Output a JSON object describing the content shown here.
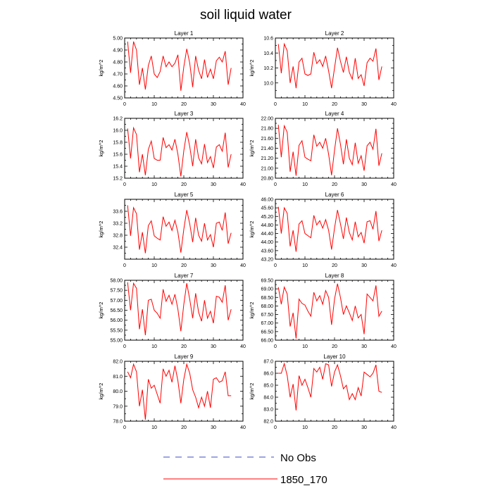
{
  "figure": {
    "title": "soil liquid water"
  },
  "legend": {
    "entries": [
      {
        "label": "No Obs",
        "color": "#3b4bc8",
        "style": "dashed"
      },
      {
        "label": "1850_170",
        "color": "#ff0000",
        "style": "solid"
      }
    ]
  },
  "chart_data": [
    {
      "type": "line",
      "title": "Layer 1",
      "xlabel": "",
      "ylabel": "kg/m^2",
      "xlim": [
        0,
        40
      ],
      "ylim": [
        4.5,
        5.0
      ],
      "xticks": [
        0,
        10,
        20,
        30,
        40
      ],
      "yticks": [
        4.5,
        4.6,
        4.7,
        4.8,
        4.9,
        5.0
      ],
      "ytick_decimals": 2,
      "series": [
        {
          "name": "1850_170",
          "color": "#ff0000",
          "x": [
            1,
            2,
            3,
            4,
            5,
            6,
            7,
            8,
            9,
            10,
            11,
            12,
            13,
            14,
            15,
            16,
            17,
            18,
            19,
            20,
            21,
            22,
            23,
            24,
            25,
            26,
            27,
            28,
            29,
            30,
            31,
            32,
            33,
            34,
            35,
            36
          ],
          "values": [
            4.97,
            4.71,
            4.97,
            4.9,
            4.61,
            4.75,
            4.57,
            4.77,
            4.85,
            4.7,
            4.67,
            4.72,
            4.85,
            4.76,
            4.8,
            4.76,
            4.79,
            4.86,
            4.56,
            4.76,
            4.91,
            4.79,
            4.59,
            4.85,
            4.73,
            4.66,
            4.82,
            4.67,
            4.74,
            4.66,
            4.81,
            4.84,
            4.8,
            4.89,
            4.61,
            4.75
          ]
        }
      ]
    },
    {
      "type": "line",
      "title": "Layer 2",
      "xlabel": "",
      "ylabel": "kg/m^2",
      "xlim": [
        0,
        40
      ],
      "ylim": [
        9.8,
        10.6
      ],
      "xticks": [
        0,
        10,
        20,
        30,
        40
      ],
      "yticks": [
        10.0,
        10.2,
        10.4,
        10.6
      ],
      "ytick_decimals": 1,
      "series": [
        {
          "name": "1850_170",
          "color": "#ff0000",
          "x": [
            1,
            2,
            3,
            4,
            5,
            6,
            7,
            8,
            9,
            10,
            11,
            12,
            13,
            14,
            15,
            16,
            17,
            18,
            19,
            20,
            21,
            22,
            23,
            24,
            25,
            26,
            27,
            28,
            29,
            30,
            31,
            32,
            33,
            34,
            35,
            36
          ],
          "values": [
            10.52,
            10.13,
            10.52,
            10.43,
            10.0,
            10.22,
            9.93,
            10.28,
            10.33,
            10.12,
            10.1,
            10.12,
            10.41,
            10.26,
            10.31,
            10.22,
            10.36,
            10.16,
            9.93,
            10.2,
            10.47,
            10.29,
            10.14,
            10.35,
            10.14,
            10.05,
            10.33,
            10.06,
            10.11,
            9.96,
            10.27,
            10.33,
            10.29,
            10.46,
            10.04,
            10.22
          ]
        }
      ]
    },
    {
      "type": "line",
      "title": "Layer 3",
      "xlabel": "",
      "ylabel": "kg/m^2",
      "xlim": [
        0,
        40
      ],
      "ylim": [
        15.2,
        16.2
      ],
      "xticks": [
        0,
        10,
        20,
        30,
        40
      ],
      "yticks": [
        15.2,
        15.4,
        15.6,
        15.8,
        16.0,
        16.2
      ],
      "ytick_decimals": 1,
      "series": [
        {
          "name": "1850_170",
          "color": "#ff0000",
          "x": [
            1,
            2,
            3,
            4,
            5,
            6,
            7,
            8,
            9,
            10,
            11,
            12,
            13,
            14,
            15,
            16,
            17,
            18,
            19,
            20,
            21,
            22,
            23,
            24,
            25,
            26,
            27,
            28,
            29,
            30,
            31,
            32,
            33,
            34,
            35,
            36
          ],
          "values": [
            16.03,
            15.53,
            16.04,
            15.93,
            15.3,
            15.6,
            15.25,
            15.68,
            15.82,
            15.53,
            15.5,
            15.5,
            15.88,
            15.71,
            15.76,
            15.67,
            15.85,
            15.6,
            15.23,
            15.66,
            15.97,
            15.73,
            15.4,
            15.85,
            15.54,
            15.44,
            15.77,
            15.46,
            15.56,
            15.37,
            15.72,
            15.76,
            15.65,
            15.96,
            15.38,
            15.6
          ]
        }
      ]
    },
    {
      "type": "line",
      "title": "Layer 4",
      "xlabel": "",
      "ylabel": "kg/m^2",
      "xlim": [
        0,
        40
      ],
      "ylim": [
        20.8,
        22.0
      ],
      "xticks": [
        0,
        10,
        20,
        30,
        40
      ],
      "yticks": [
        20.8,
        21.0,
        21.2,
        21.4,
        21.6,
        21.8,
        22.0
      ],
      "ytick_decimals": 2,
      "series": [
        {
          "name": "1850_170",
          "color": "#ff0000",
          "x": [
            1,
            2,
            3,
            4,
            5,
            6,
            7,
            8,
            9,
            10,
            11,
            12,
            13,
            14,
            15,
            16,
            17,
            18,
            19,
            20,
            21,
            22,
            23,
            24,
            25,
            26,
            27,
            28,
            29,
            30,
            31,
            32,
            33,
            34,
            35,
            36
          ],
          "values": [
            21.87,
            21.22,
            21.85,
            21.72,
            20.93,
            21.33,
            20.85,
            21.46,
            21.55,
            21.22,
            21.18,
            21.15,
            21.67,
            21.44,
            21.52,
            21.4,
            21.6,
            21.28,
            20.86,
            21.36,
            21.8,
            21.48,
            21.08,
            21.58,
            21.2,
            21.07,
            21.51,
            21.1,
            21.25,
            20.95,
            21.45,
            21.52,
            21.38,
            21.79,
            21.05,
            21.3
          ]
        }
      ]
    },
    {
      "type": "line",
      "title": "Layer 5",
      "xlabel": "",
      "ylabel": "kg/m^2",
      "xlim": [
        0,
        40
      ],
      "ylim": [
        32.0,
        34.0
      ],
      "xticks": [
        0,
        10,
        20,
        30,
        40
      ],
      "yticks": [
        32.4,
        32.8,
        33.2,
        33.6
      ],
      "ytick_decimals": 1,
      "series": [
        {
          "name": "1850_170",
          "color": "#ff0000",
          "x": [
            1,
            2,
            3,
            4,
            5,
            6,
            7,
            8,
            9,
            10,
            11,
            12,
            13,
            14,
            15,
            16,
            17,
            18,
            19,
            20,
            21,
            22,
            23,
            24,
            25,
            26,
            27,
            28,
            29,
            30,
            31,
            32,
            33,
            34,
            35,
            36
          ],
          "values": [
            33.8,
            32.78,
            33.72,
            33.52,
            32.32,
            32.9,
            32.2,
            33.12,
            33.28,
            32.78,
            32.7,
            32.64,
            33.42,
            33.1,
            33.24,
            32.96,
            33.3,
            32.9,
            32.22,
            33.0,
            33.64,
            33.18,
            32.57,
            33.38,
            32.8,
            32.6,
            33.2,
            32.64,
            32.82,
            32.4,
            33.2,
            33.24,
            32.96,
            33.56,
            32.52,
            32.88
          ]
        }
      ]
    },
    {
      "type": "line",
      "title": "Layer 6",
      "xlabel": "",
      "ylabel": "kg/m^2",
      "xlim": [
        0,
        40
      ],
      "ylim": [
        43.2,
        46.0
      ],
      "xticks": [
        0,
        10,
        20,
        30,
        40
      ],
      "yticks": [
        43.2,
        43.6,
        44.0,
        44.4,
        44.8,
        45.2,
        45.6,
        46.0
      ],
      "ytick_decimals": 2,
      "series": [
        {
          "name": "1850_170",
          "color": "#ff0000",
          "x": [
            1,
            2,
            3,
            4,
            5,
            6,
            7,
            8,
            9,
            10,
            11,
            12,
            13,
            14,
            15,
            16,
            17,
            18,
            19,
            20,
            21,
            22,
            23,
            24,
            25,
            26,
            27,
            28,
            29,
            30,
            31,
            32,
            33,
            34,
            35,
            36
          ],
          "values": [
            45.65,
            44.4,
            45.6,
            45.35,
            43.8,
            44.55,
            43.55,
            44.85,
            45.0,
            44.4,
            44.3,
            44.2,
            45.25,
            44.8,
            45.0,
            44.65,
            45.05,
            44.55,
            43.65,
            44.65,
            45.5,
            44.85,
            44.15,
            45.15,
            44.45,
            44.1,
            44.95,
            44.25,
            44.45,
            43.95,
            44.95,
            45.0,
            44.6,
            45.45,
            44.05,
            44.55
          ]
        }
      ]
    },
    {
      "type": "line",
      "title": "Layer 7",
      "xlabel": "",
      "ylabel": "kg/m^2",
      "xlim": [
        0,
        40
      ],
      "ylim": [
        55.0,
        58.0
      ],
      "xticks": [
        0,
        10,
        20,
        30,
        40
      ],
      "yticks": [
        55.0,
        55.5,
        56.0,
        56.5,
        57.0,
        57.5,
        58.0
      ],
      "ytick_decimals": 2,
      "series": [
        {
          "name": "1850_170",
          "color": "#ff0000",
          "x": [
            1,
            2,
            3,
            4,
            5,
            6,
            7,
            8,
            9,
            10,
            11,
            12,
            13,
            14,
            15,
            16,
            17,
            18,
            19,
            20,
            21,
            22,
            23,
            24,
            25,
            26,
            27,
            28,
            29,
            30,
            31,
            32,
            33,
            34,
            35,
            36
          ],
          "values": [
            57.9,
            56.5,
            57.85,
            57.6,
            55.55,
            56.55,
            55.25,
            57.0,
            57.05,
            56.5,
            56.35,
            56.1,
            57.55,
            56.95,
            57.25,
            56.8,
            57.3,
            56.55,
            55.45,
            56.8,
            57.85,
            57.05,
            56.1,
            57.35,
            56.4,
            55.95,
            57.0,
            56.1,
            56.45,
            55.85,
            57.2,
            57.15,
            56.9,
            57.75,
            56.0,
            56.55
          ]
        }
      ]
    },
    {
      "type": "line",
      "title": "Layer 8",
      "xlabel": "",
      "ylabel": "kg/m^2",
      "xlim": [
        0,
        40
      ],
      "ylim": [
        66.0,
        69.5
      ],
      "xticks": [
        0,
        10,
        20,
        30,
        40
      ],
      "yticks": [
        66.0,
        66.5,
        67.0,
        67.5,
        68.0,
        68.5,
        69.0,
        69.5
      ],
      "ytick_decimals": 2,
      "series": [
        {
          "name": "1850_170",
          "color": "#ff0000",
          "x": [
            1,
            2,
            3,
            4,
            5,
            6,
            7,
            8,
            9,
            10,
            11,
            12,
            13,
            14,
            15,
            16,
            17,
            18,
            19,
            20,
            21,
            22,
            23,
            24,
            25,
            26,
            27,
            28,
            29,
            30,
            31,
            32,
            33,
            34,
            35,
            36
          ],
          "values": [
            69.1,
            68.1,
            69.1,
            68.7,
            66.8,
            67.6,
            66.1,
            68.4,
            68.15,
            68.05,
            67.7,
            67.4,
            68.8,
            68.3,
            68.6,
            68.1,
            68.9,
            68.5,
            66.9,
            68.4,
            69.3,
            68.5,
            67.5,
            68.0,
            67.6,
            67.15,
            68.0,
            67.3,
            67.5,
            66.35,
            68.7,
            68.5,
            68.3,
            69.2,
            67.4,
            67.7
          ]
        }
      ]
    },
    {
      "type": "line",
      "title": "Layer 9",
      "xlabel": "",
      "ylabel": "kg/m^2",
      "xlim": [
        0,
        40
      ],
      "ylim": [
        78.0,
        82.0
      ],
      "xticks": [
        0,
        10,
        20,
        30,
        40
      ],
      "yticks": [
        78.0,
        79.0,
        80.0,
        81.0,
        82.0
      ],
      "ytick_decimals": 1,
      "series": [
        {
          "name": "1850_170",
          "color": "#ff0000",
          "x": [
            1,
            2,
            3,
            4,
            5,
            6,
            7,
            8,
            9,
            10,
            11,
            12,
            13,
            14,
            15,
            16,
            17,
            18,
            19,
            20,
            21,
            22,
            23,
            24,
            25,
            26,
            27,
            28,
            29,
            30,
            31,
            32,
            33,
            34,
            35,
            36
          ],
          "values": [
            81.3,
            80.9,
            81.8,
            81.3,
            79.0,
            80.1,
            78.1,
            80.8,
            80.2,
            80.4,
            79.8,
            79.2,
            81.5,
            81.0,
            81.4,
            80.6,
            81.7,
            80.7,
            79.2,
            80.8,
            81.8,
            81.2,
            80.1,
            79.6,
            78.9,
            79.6,
            79.0,
            80.0,
            78.9,
            80.8,
            80.9,
            80.6,
            80.7,
            81.3,
            79.7,
            79.7
          ]
        }
      ]
    },
    {
      "type": "line",
      "title": "Layer 10",
      "xlabel": "",
      "ylabel": "kg/m^2",
      "xlim": [
        0,
        40
      ],
      "ylim": [
        82.0,
        87.0
      ],
      "xticks": [
        0,
        10,
        20,
        30,
        40
      ],
      "yticks": [
        82.0,
        83.0,
        84.0,
        85.0,
        86.0,
        87.0
      ],
      "ytick_decimals": 1,
      "series": [
        {
          "name": "1850_170",
          "color": "#ff0000",
          "x": [
            1,
            2,
            3,
            4,
            5,
            6,
            7,
            8,
            9,
            10,
            11,
            12,
            13,
            14,
            15,
            16,
            17,
            18,
            19,
            20,
            21,
            22,
            23,
            24,
            25,
            26,
            27,
            28,
            29,
            30,
            31,
            32,
            33,
            34,
            35,
            36
          ],
          "values": [
            86.0,
            86.0,
            86.8,
            85.8,
            84.0,
            85.1,
            82.9,
            85.8,
            85.0,
            85.5,
            84.8,
            84.0,
            86.4,
            86.1,
            86.5,
            85.5,
            86.8,
            86.7,
            84.9,
            86.1,
            86.7,
            85.8,
            84.7,
            85.0,
            83.8,
            84.3,
            83.8,
            84.8,
            84.1,
            86.1,
            85.9,
            85.7,
            86.0,
            86.7,
            84.5,
            84.4
          ]
        }
      ]
    }
  ]
}
